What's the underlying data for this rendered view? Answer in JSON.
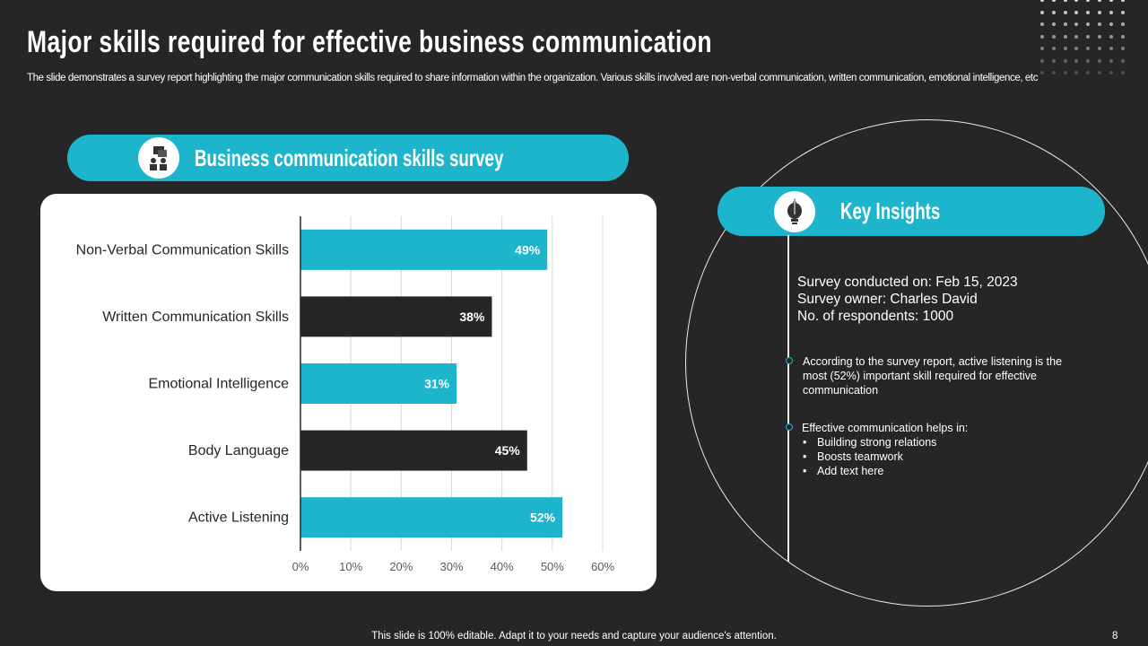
{
  "title": "Major skills required for effective business communication",
  "subtitle": "The slide demonstrates a survey report highlighting the major communication skills required to share information within the organization. Various skills involved are non-verbal communication, written communication, emotional intelligence, etc",
  "survey_header": {
    "label": "Business communication skills survey",
    "icon": "people-discussion-icon"
  },
  "insights_header": {
    "label": "Key Insights",
    "icon": "lightbulb-pen-icon"
  },
  "insights": {
    "meta": [
      "Survey conducted on: Feb 15, 2023",
      "Survey owner: Charles David",
      "No. of respondents: 1000"
    ],
    "point1": "According to the survey report, active listening is the most (52%) important skill required for effective communication",
    "point2": "Effective communication helps in:",
    "bullets": [
      "Building strong relations",
      "Boosts teamwork",
      "Add text here"
    ]
  },
  "footer": "This slide is 100% editable. Adapt it to your needs and capture your audience's attention.",
  "page_number": "8",
  "colors": {
    "accent": "#1db5cb",
    "dark": "#262626",
    "background": "#262626"
  },
  "chart_data": {
    "type": "bar",
    "orientation": "horizontal",
    "categories": [
      "Non-Verbal Communication Skills",
      "Written Communication Skills",
      "Emotional Intelligence",
      "Body Language",
      "Active Listening"
    ],
    "values": [
      49,
      38,
      31,
      45,
      52
    ],
    "data_labels": [
      "49%",
      "38%",
      "31%",
      "45%",
      "52%"
    ],
    "bar_colors": [
      "#1db5cb",
      "#262626",
      "#1db5cb",
      "#262626",
      "#1db5cb"
    ],
    "xlim": [
      0,
      60
    ],
    "xticks": [
      "0%",
      "10%",
      "20%",
      "30%",
      "40%",
      "50%",
      "60%"
    ],
    "grid": true,
    "legend": "none"
  }
}
